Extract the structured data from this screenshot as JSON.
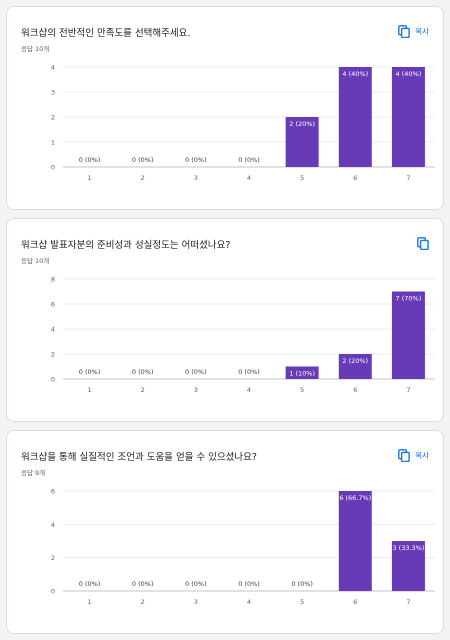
{
  "copy_label": "복사",
  "colors": {
    "bar": "#673ab7",
    "grid": "#e8e8e8",
    "axis": "#b0b0b0",
    "label_inside": "#ffffff",
    "label_outside": "#3c4043",
    "copy": "#1a73e8"
  },
  "cards": [
    {
      "title": "워크샵의 전반적인 만족도를 선택해주세요.",
      "count": "응답 10개",
      "chart_data": {
        "type": "bar",
        "categories": [
          "1",
          "2",
          "3",
          "4",
          "5",
          "6",
          "7"
        ],
        "values": [
          0,
          0,
          0,
          0,
          2,
          4,
          4
        ],
        "data_labels": [
          "0 (0%)",
          "0 (0%)",
          "0 (0%)",
          "0 (0%)",
          "2 (20%)",
          "4 (40%)",
          "4 (40%)"
        ],
        "yticks": [
          "0",
          "1",
          "2",
          "3",
          "4"
        ],
        "ylim": [
          0,
          4
        ]
      }
    },
    {
      "title": "워크샵 발표자분의 준비성과 성실정도는 어떠셨나요?",
      "count": "응답 10개",
      "chart_data": {
        "type": "bar",
        "categories": [
          "1",
          "2",
          "3",
          "4",
          "5",
          "6",
          "7"
        ],
        "values": [
          0,
          0,
          0,
          0,
          1,
          2,
          7
        ],
        "data_labels": [
          "0 (0%)",
          "0 (0%)",
          "0 (0%)",
          "0 (0%)",
          "1 (10%)",
          "2 (20%)",
          "7 (70%)"
        ],
        "yticks": [
          "0",
          "2",
          "4",
          "6",
          "8"
        ],
        "ylim": [
          0,
          8
        ]
      }
    },
    {
      "title": "워크샵을 통해 실질적인 조언과 도움을 얻을 수 있으셨나요?",
      "count": "응답 9개",
      "chart_data": {
        "type": "bar",
        "categories": [
          "1",
          "2",
          "3",
          "4",
          "5",
          "6",
          "7"
        ],
        "values": [
          0,
          0,
          0,
          0,
          0,
          6,
          3
        ],
        "data_labels": [
          "0 (0%)",
          "0 (0%)",
          "0 (0%)",
          "0 (0%)",
          "0 (0%)",
          "6 (66.7%)",
          "3 (33.3%)"
        ],
        "yticks": [
          "0",
          "2",
          "4",
          "6"
        ],
        "ylim": [
          0,
          6
        ]
      }
    }
  ]
}
